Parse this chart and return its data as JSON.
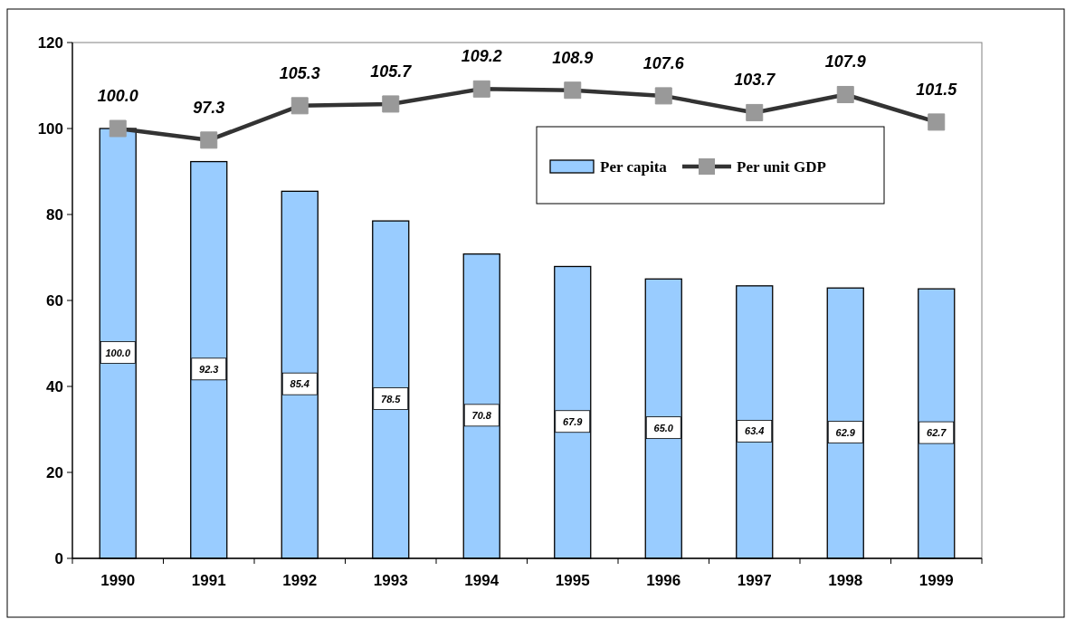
{
  "chart_data": {
    "type": "bar",
    "categories": [
      "1990",
      "1991",
      "1992",
      "1993",
      "1994",
      "1995",
      "1996",
      "1997",
      "1998",
      "1999"
    ],
    "series": [
      {
        "name": "Per capita",
        "color": "#99ccff",
        "values": [
          100.0,
          92.3,
          85.4,
          78.5,
          70.8,
          67.9,
          65.0,
          63.4,
          62.9,
          62.7
        ],
        "value_labels": [
          "100.0",
          "92.3",
          "85.4",
          "78.5",
          "70.8",
          "67.9",
          "65.0",
          "63.4",
          "62.9",
          "62.7"
        ]
      },
      {
        "name": "Per unit GDP",
        "type": "line",
        "color": "#333333",
        "values": [
          100.0,
          97.3,
          105.3,
          105.7,
          109.2,
          108.9,
          107.6,
          103.7,
          107.9,
          101.5
        ],
        "value_labels": [
          "100.0",
          "97.3",
          "105.3",
          "105.7",
          "109.2",
          "108.9",
          "107.6",
          "103.7",
          "107.9",
          "101.5"
        ]
      }
    ],
    "ylim": [
      0,
      120
    ],
    "yticks": [
      0,
      20,
      40,
      60,
      80,
      100,
      120
    ],
    "legend": "top right",
    "marker": "square",
    "grid": false
  }
}
